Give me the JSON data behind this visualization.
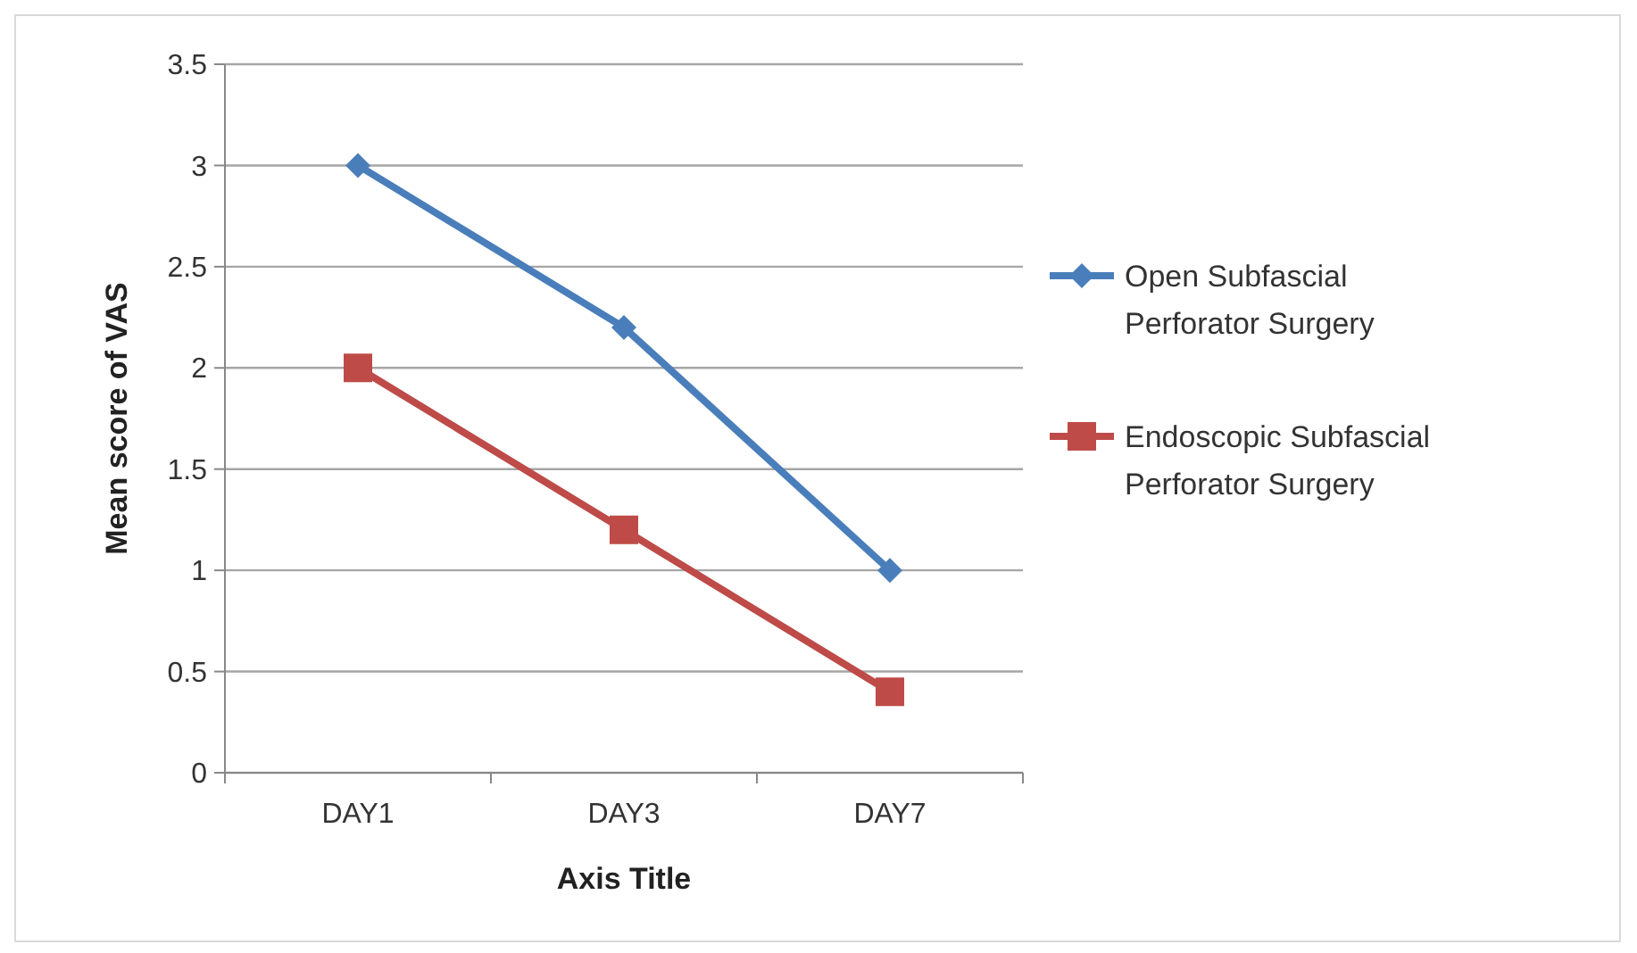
{
  "chart_data": {
    "type": "line",
    "xlabel": "Axis Title",
    "ylabel": "Mean score of VAS",
    "categories": [
      "DAY1",
      "DAY3",
      "DAY7"
    ],
    "series": [
      {
        "name": "Open Subfascial Perforator Surgery",
        "color": "#4a7ebb",
        "marker": "diamond",
        "values": [
          3,
          2.2,
          1
        ]
      },
      {
        "name": "Endoscopic Subfascial Perforator Surgery",
        "color": "#be4b48",
        "marker": "square",
        "values": [
          2,
          1.2,
          0.4
        ]
      }
    ],
    "ylim": [
      0,
      3.5
    ],
    "yticks": [
      0,
      0.5,
      1,
      1.5,
      2,
      2.5,
      3,
      3.5
    ],
    "grid": "y",
    "legend": "right",
    "line_style": "solid"
  }
}
